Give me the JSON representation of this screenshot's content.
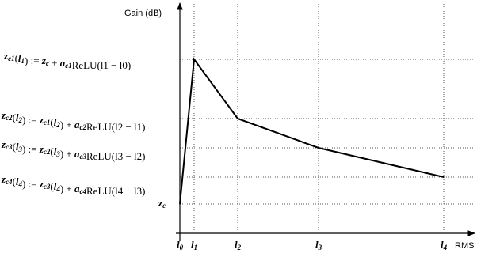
{
  "axes": {
    "y_label": "Gain (dB)",
    "x_label": "RMS"
  },
  "x_labels": [
    [
      {
        "base": "l",
        "sub": "0"
      }
    ],
    [
      {
        "base": "l",
        "sub": "1"
      }
    ],
    [
      {
        "base": "l",
        "sub": "2"
      }
    ],
    [
      {
        "base": "l",
        "sub": "3"
      }
    ],
    [
      {
        "base": "l",
        "sub": "4"
      }
    ]
  ],
  "y_labels": [
    [
      {
        "base": "z",
        "sub": "c1"
      },
      "(",
      {
        "base": "l",
        "sub": "1"
      },
      ") := ",
      {
        "base": "z",
        "sub": "c"
      },
      " + ",
      {
        "base": "a",
        "sub": "c1"
      },
      "ReLU(l1 − l0)"
    ],
    [
      {
        "base": "z",
        "sub": "c2"
      },
      "(",
      {
        "base": "l",
        "sub": "2"
      },
      ") := ",
      {
        "base": "z",
        "sub": "c1"
      },
      "(",
      {
        "base": "l",
        "sub": "2"
      },
      ") + ",
      {
        "base": "a",
        "sub": "c2"
      },
      "ReLU(l2 − l1)"
    ],
    [
      {
        "base": "z",
        "sub": "c3"
      },
      "(",
      {
        "base": "l",
        "sub": "3"
      },
      ") := ",
      {
        "base": "z",
        "sub": "c2"
      },
      "(",
      {
        "base": "l",
        "sub": "3"
      },
      ") + ",
      {
        "base": "a",
        "sub": "c3"
      },
      "ReLU(l3 − l2)"
    ],
    [
      {
        "base": "z",
        "sub": "c4"
      },
      "(",
      {
        "base": "l",
        "sub": "4"
      },
      ") := ",
      {
        "base": "z",
        "sub": "c3"
      },
      "(",
      {
        "base": "l",
        "sub": "4"
      },
      ") + ",
      {
        "base": "a",
        "sub": "c4"
      },
      "ReLU(l4 − l3)"
    ],
    [
      {
        "base": "z",
        "sub": "c"
      }
    ]
  ]
}
